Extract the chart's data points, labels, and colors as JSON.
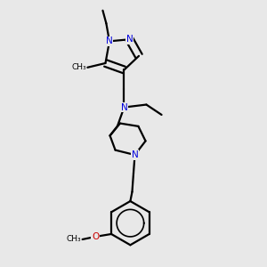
{
  "background_color": "#e8e8e8",
  "bond_color": "#000000",
  "nitrogen_color": "#0000dd",
  "oxygen_color": "#cc0000",
  "line_width": 1.6,
  "figsize": [
    3.0,
    3.0
  ],
  "dpi": 100,
  "xlim": [
    0.15,
    0.75
  ],
  "ylim": [
    0.02,
    1.0
  ]
}
